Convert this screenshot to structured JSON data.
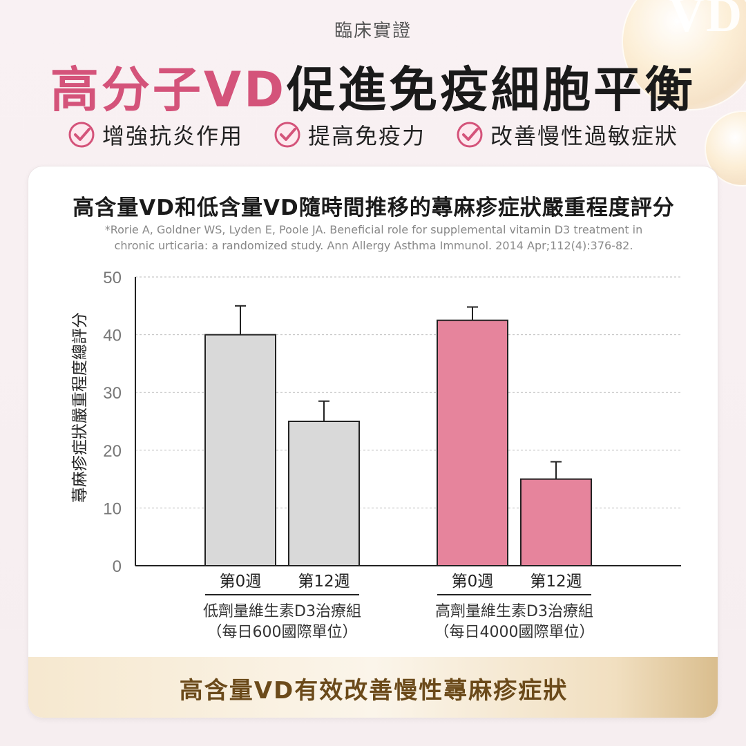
{
  "badge": {
    "text": "VD"
  },
  "kicker": "臨床實證",
  "headline": {
    "accent": "高分子VD",
    "rest": "促進免疫細胞平衡"
  },
  "benefits": [
    {
      "icon": "check-circle-icon",
      "label": "增強抗炎作用"
    },
    {
      "icon": "check-circle-icon",
      "label": "提高免疫力"
    },
    {
      "icon": "check-circle-icon",
      "label": "改善慢性過敏症狀"
    }
  ],
  "colors": {
    "accent": "#d4537a",
    "low_bar": "#d9d9d9",
    "high_bar": "#e6849c",
    "footer_text": "#6b4a1a"
  },
  "chart_data": {
    "type": "bar",
    "title": "高含量VD和低含量VD隨時間推移的蕁麻疹症狀嚴重程度評分",
    "citation_lines": [
      "*Rorie A, Goldner WS, Lyden E, Poole JA. Beneficial role for supplemental vitamin D3 treatment in",
      "chronic urticaria: a randomized study. Ann Allergy Asthma Immunol. 2014 Apr;112(4):376-82."
    ],
    "ylabel": "蕁麻疹症狀嚴重程度總評分",
    "ylim": [
      0,
      50
    ],
    "yticks": [
      0,
      10,
      20,
      30,
      40,
      50
    ],
    "grid": true,
    "groups": [
      {
        "name_line1": "低劑量維生素D3治療組",
        "name_line2": "（每日600國際單位）",
        "color": "#d9d9d9",
        "bars": [
          {
            "label": "第0週",
            "value": 40,
            "error": 5
          },
          {
            "label": "第12週",
            "value": 25,
            "error": 3.5
          }
        ]
      },
      {
        "name_line1": "高劑量維生素D3治療組",
        "name_line2": "（每日4000國際單位）",
        "color": "#e6849c",
        "bars": [
          {
            "label": "第0週",
            "value": 42.5,
            "error": 2.3
          },
          {
            "label": "第12週",
            "value": 15,
            "error": 3
          }
        ]
      }
    ]
  },
  "footer": {
    "text": "高含量VD有效改善慢性蕁麻疹症狀"
  }
}
